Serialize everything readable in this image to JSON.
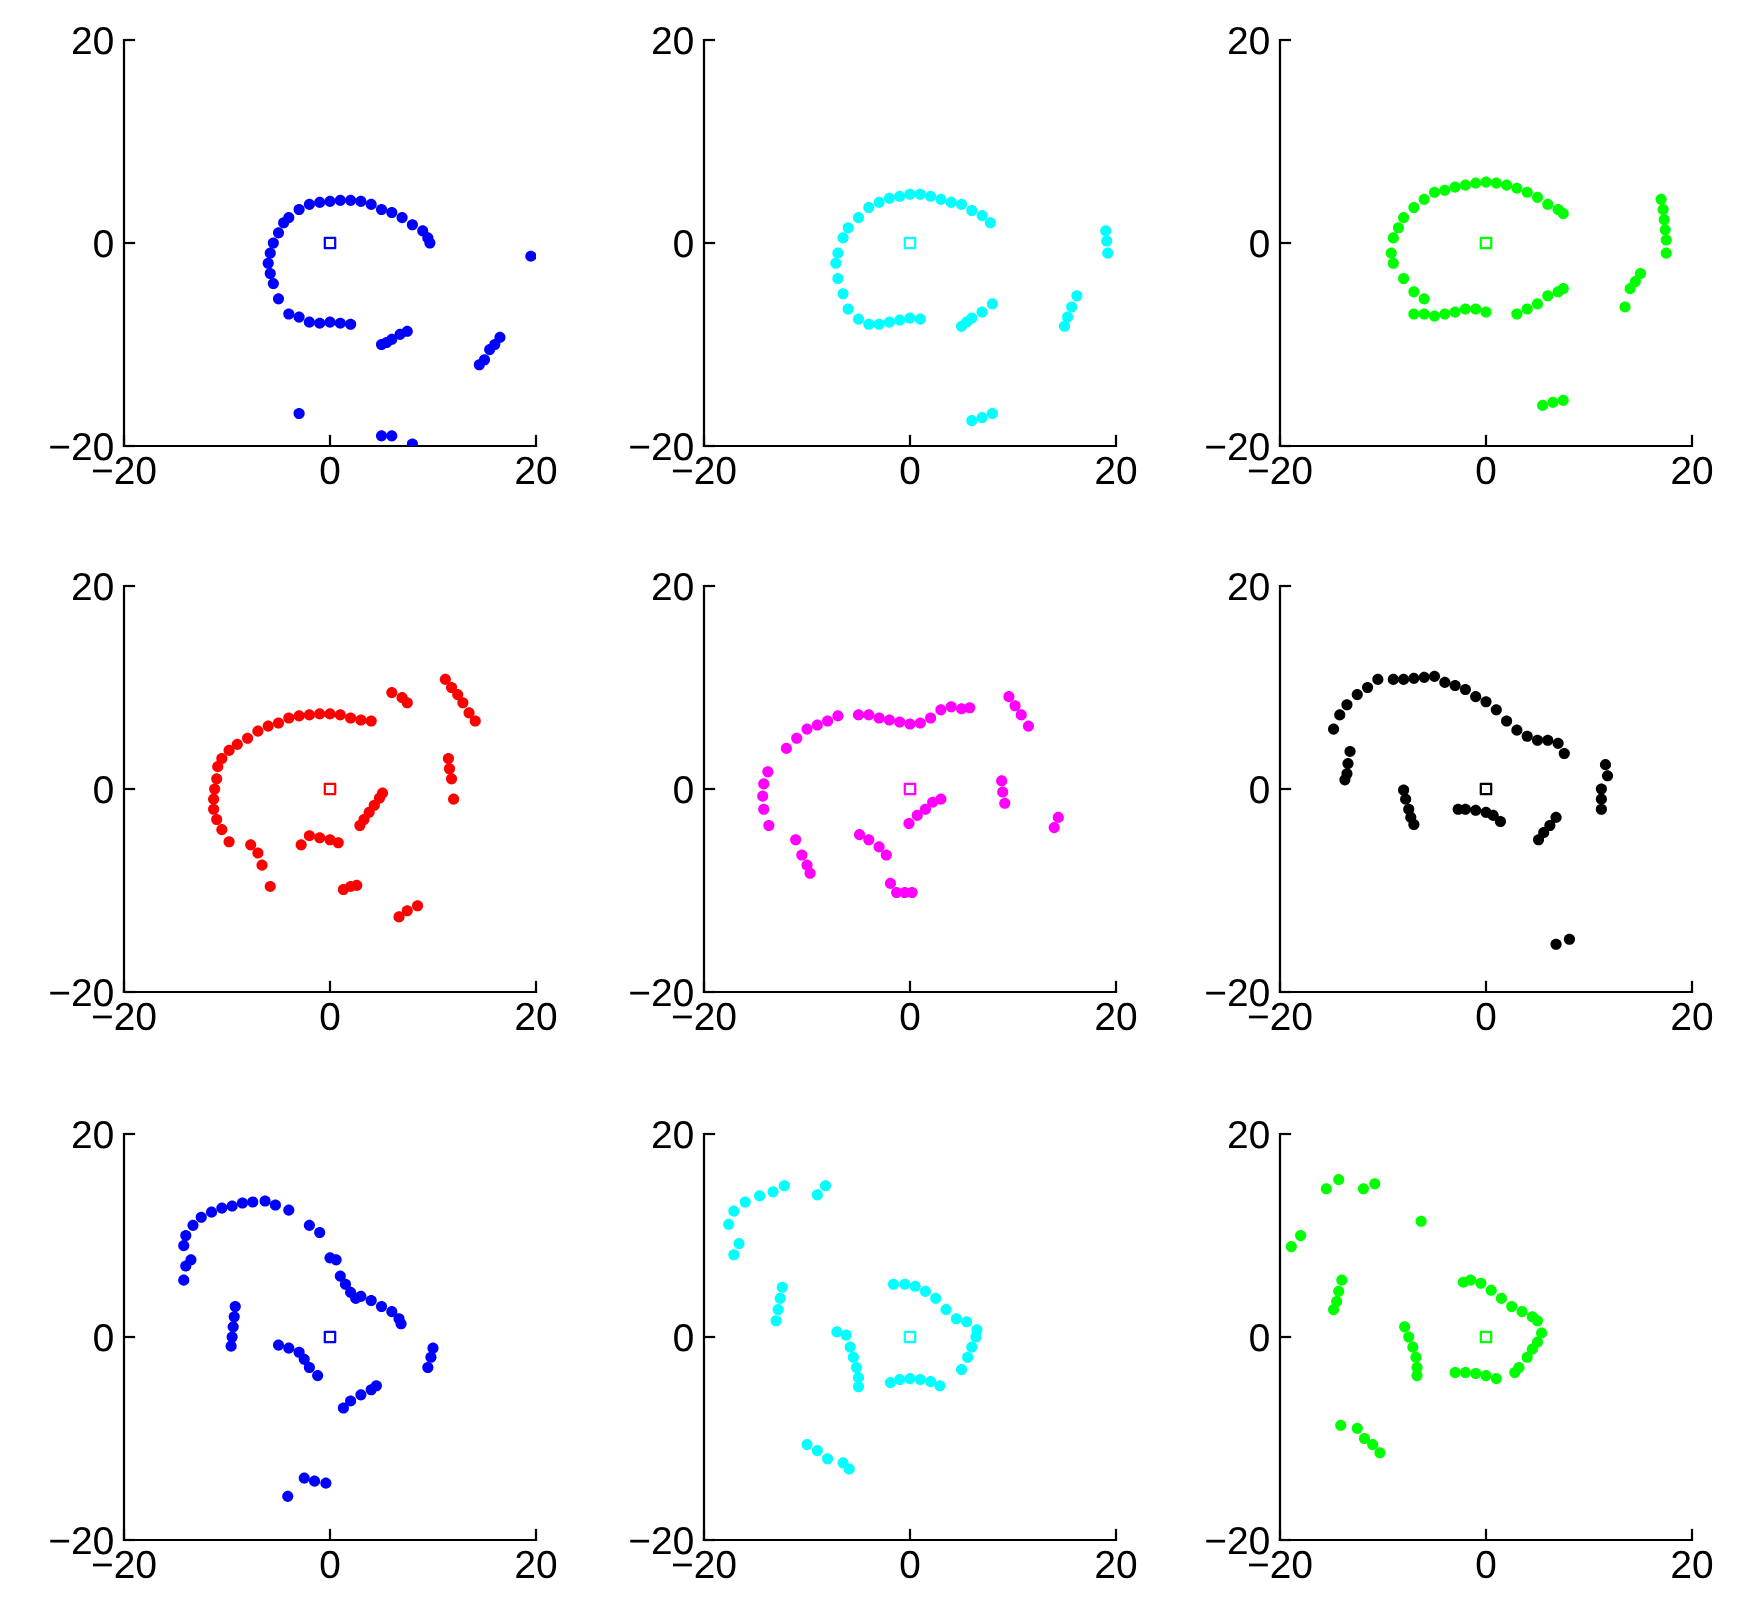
{
  "chart_data": [
    {
      "type": "scatter",
      "xlim": [
        -20,
        20
      ],
      "ylim": [
        -20,
        20
      ],
      "xticks": [
        -20,
        0,
        20
      ],
      "yticks": [
        -20,
        0,
        20
      ],
      "grid": false,
      "marker": "circle",
      "series": [
        {
          "color": "#0000ff",
          "x": [
            -5,
            -5.5,
            -5.8,
            -6,
            -5.8,
            -5.5,
            -5,
            -4.5,
            -4,
            -3,
            -2,
            -1,
            0,
            1,
            2,
            3,
            4,
            5,
            6,
            7,
            8,
            9,
            9.5,
            9.7,
            -4,
            -3,
            -2,
            -1,
            0,
            1,
            2,
            5,
            5.5,
            6,
            6.8,
            7.5,
            14.5,
            15,
            15.5,
            16,
            16.5,
            19.5,
            -3,
            5,
            6,
            8
          ],
          "values": [
            -5.5,
            -4,
            -3,
            -2,
            -1,
            0,
            1,
            2,
            2.5,
            3.3,
            3.8,
            4,
            4.1,
            4.2,
            4.2,
            4.1,
            3.8,
            3.3,
            3,
            2.5,
            1.8,
            1.2,
            0.5,
            0,
            -7,
            -7.3,
            -7.8,
            -7.9,
            -7.8,
            -7.9,
            -8,
            -10,
            -9.8,
            -9.5,
            -9,
            -8.7,
            -12,
            -11.5,
            -10.5,
            -10,
            -9.3,
            -1.3,
            -16.8,
            -19,
            -19,
            -19.8
          ]
        },
        {
          "color": "#0000ff",
          "x": [
            0
          ],
          "values": [
            0
          ],
          "marker": "square"
        }
      ]
    },
    {
      "type": "scatter",
      "xlim": [
        -20,
        20
      ],
      "ylim": [
        -20,
        20
      ],
      "xticks": [
        -20,
        0,
        20
      ],
      "yticks": [
        -20,
        0,
        20
      ],
      "grid": false,
      "marker": "circle",
      "series": [
        {
          "color": "#00ffff",
          "x": [
            -6,
            -6.5,
            -7,
            -7.2,
            -7,
            -6.5,
            -6,
            -5,
            -4,
            -3,
            -2,
            -1,
            0,
            1,
            2,
            3,
            4,
            5,
            6,
            7,
            7.8,
            -5,
            -4,
            -3,
            -2,
            -1,
            0,
            1,
            5,
            5.5,
            6,
            7,
            8,
            15,
            15.3,
            15.7,
            16.2,
            19,
            19.1,
            19.2,
            6,
            7,
            8
          ],
          "values": [
            -6.5,
            -5,
            -3.5,
            -2,
            -1,
            0.5,
            1.5,
            2.5,
            3.5,
            4,
            4.4,
            4.6,
            4.8,
            4.8,
            4.6,
            4.3,
            4,
            3.8,
            3.2,
            2.7,
            2,
            -7.5,
            -8,
            -8,
            -7.8,
            -7.6,
            -7.4,
            -7.5,
            -8.2,
            -7.8,
            -7.4,
            -6.8,
            -6,
            -8.2,
            -7.3,
            -6.3,
            -5.2,
            1.2,
            0.2,
            -1,
            -17.5,
            -17.2,
            -16.8
          ]
        },
        {
          "color": "#00ffff",
          "x": [
            0
          ],
          "values": [
            0
          ],
          "marker": "square"
        }
      ]
    },
    {
      "type": "scatter",
      "xlim": [
        -20,
        20
      ],
      "ylim": [
        -20,
        20
      ],
      "xticks": [
        -20,
        0,
        20
      ],
      "yticks": [
        -20,
        0,
        20
      ],
      "grid": false,
      "marker": "circle",
      "series": [
        {
          "color": "#00ff00",
          "x": [
            -6,
            -7,
            -8,
            -9,
            -9.2,
            -9,
            -8.5,
            -8,
            -7,
            -6,
            -5,
            -4,
            -3,
            -2,
            -1,
            0,
            1,
            2,
            3,
            4,
            5,
            6,
            7,
            7.5,
            -7,
            -6,
            -5,
            -4,
            -3,
            -2,
            -1,
            0,
            3,
            4,
            5,
            6,
            7,
            7.5,
            13.5,
            14,
            14.5,
            15,
            17,
            17.2,
            17.3,
            17.4,
            17.5,
            17.5,
            5.5,
            6.5,
            7.5
          ],
          "values": [
            -5.5,
            -4.8,
            -3.5,
            -2,
            -1,
            0.5,
            1.5,
            2.5,
            3.5,
            4.3,
            5,
            5.2,
            5.5,
            5.7,
            5.9,
            6,
            5.9,
            5.7,
            5.4,
            5,
            4.5,
            3.8,
            3.3,
            2.9,
            -7,
            -7,
            -7.2,
            -7,
            -6.8,
            -6.5,
            -6.5,
            -6.8,
            -7,
            -6.5,
            -6,
            -5.2,
            -4.8,
            -4.5,
            -6.3,
            -4.5,
            -3.8,
            -3,
            4.3,
            3.3,
            2.3,
            1.3,
            0.3,
            -1,
            -16,
            -15.7,
            -15.5
          ]
        },
        {
          "color": "#00ff00",
          "x": [
            0
          ],
          "values": [
            0
          ],
          "marker": "square"
        }
      ]
    },
    {
      "type": "scatter",
      "xlim": [
        -20,
        20
      ],
      "ylim": [
        -20,
        20
      ],
      "xticks": [
        -20,
        0,
        20
      ],
      "yticks": [
        -20,
        0,
        20
      ],
      "grid": false,
      "marker": "circle",
      "series": [
        {
          "color": "#ff0000",
          "x": [
            -9.8,
            -10.5,
            -11,
            -11.3,
            -11.3,
            -11.2,
            -11,
            -10.9,
            -10.5,
            -9.8,
            -9,
            -8,
            -7,
            -6,
            -5,
            -4,
            -3,
            -2,
            -1,
            0,
            1,
            2,
            3,
            4,
            6,
            7,
            7.5,
            11.2,
            11.8,
            12.4,
            12.9,
            13.5,
            14.1,
            11.5,
            11.6,
            11.8,
            12,
            2.9,
            3.3,
            3.8,
            4.3,
            4.8,
            5.1,
            -2.8,
            -2,
            -1,
            0,
            0.8,
            -7.7,
            -7,
            -6.6,
            -5.8,
            1.3,
            2,
            2.6,
            6.7,
            7.5,
            8.5
          ],
          "values": [
            -5.2,
            -4,
            -3,
            -2,
            -1,
            0,
            1,
            2.2,
            3,
            3.8,
            4.4,
            5,
            5.7,
            6.2,
            6.5,
            7,
            7.2,
            7.3,
            7.4,
            7.4,
            7.3,
            7,
            6.8,
            6.7,
            9.5,
            9,
            8.5,
            10.8,
            10,
            9.3,
            8.5,
            7.5,
            6.7,
            3,
            2,
            1,
            -1,
            -3.6,
            -3,
            -2.3,
            -1.6,
            -0.9,
            -0.4,
            -5.5,
            -4.6,
            -4.8,
            -5,
            -5.3,
            -5.5,
            -6.3,
            -7.5,
            -9.6,
            -9.9,
            -9.6,
            -9.5,
            -12.6,
            -12,
            -11.5
          ]
        },
        {
          "color": "#ff0000",
          "x": [
            0
          ],
          "values": [
            0
          ],
          "marker": "square"
        }
      ]
    },
    {
      "type": "scatter",
      "xlim": [
        -20,
        20
      ],
      "ylim": [
        -20,
        20
      ],
      "xticks": [
        -20,
        0,
        20
      ],
      "yticks": [
        -20,
        0,
        20
      ],
      "grid": false,
      "marker": "circle",
      "series": [
        {
          "color": "#ff00ff",
          "x": [
            -13.8,
            -14.2,
            -14.3,
            -14.2,
            -13.7,
            -12,
            -11,
            -10,
            -9,
            -8,
            -7,
            -5,
            -4,
            -3,
            -2,
            -1,
            0,
            1,
            2,
            3,
            4,
            5,
            5.8,
            9.6,
            10.2,
            10.8,
            11.5,
            8.9,
            9,
            9.2,
            14.4,
            14,
            -0.1,
            0.7,
            1.5,
            2.2,
            3,
            -4.9,
            -4,
            -3,
            -2.3,
            -11.1,
            -10.5,
            -10,
            -9.7,
            -1.9,
            -1.3,
            -0.5,
            0.2
          ],
          "values": [
            1.7,
            0.5,
            -0.7,
            -2,
            -3.6,
            4,
            5,
            5.9,
            6.3,
            6.7,
            7.2,
            7.3,
            7.3,
            7,
            6.8,
            6.6,
            6.4,
            6.5,
            7,
            7.8,
            8.1,
            7.9,
            8,
            9.1,
            8.2,
            7.3,
            6.2,
            0.8,
            -0.3,
            -1.4,
            -2.8,
            -3.8,
            -3.4,
            -2.6,
            -2,
            -1.3,
            -1,
            -4.5,
            -5,
            -5.7,
            -6.5,
            -5,
            -6.5,
            -7.5,
            -8.3,
            -9.3,
            -10.2,
            -10.2,
            -10.2
          ]
        },
        {
          "color": "#ff00ff",
          "x": [
            0
          ],
          "values": [
            0
          ],
          "marker": "square"
        }
      ]
    },
    {
      "type": "scatter",
      "xlim": [
        -20,
        20
      ],
      "ylim": [
        -20,
        20
      ],
      "xticks": [
        -20,
        0,
        20
      ],
      "yticks": [
        -20,
        0,
        20
      ],
      "grid": false,
      "marker": "circle",
      "series": [
        {
          "color": "#000000",
          "x": [
            -14.8,
            -14.2,
            -13.5,
            -12.5,
            -11.5,
            -10.5,
            -9,
            -8,
            -7,
            -6,
            -5,
            -4,
            -3,
            -2,
            -1,
            0,
            1,
            2,
            3,
            4,
            5,
            6,
            7,
            7.6,
            -13.2,
            -13.4,
            -13.5,
            -13.7,
            -8,
            -7.8,
            -7.5,
            -7.3,
            -7,
            -2.7,
            -2,
            -1,
            0,
            0.7,
            1.4,
            5.1,
            5.6,
            6.2,
            6.8,
            11.6,
            11.8,
            11.2,
            11.2,
            11.2,
            6.8,
            8.1
          ],
          "values": [
            5.9,
            7.3,
            8.3,
            9.3,
            10,
            10.8,
            10.8,
            10.8,
            10.9,
            11,
            11.1,
            10.5,
            10.2,
            9.8,
            9.1,
            8.6,
            7.8,
            6.7,
            5.8,
            5.2,
            4.8,
            4.8,
            4.5,
            3.5,
            3.7,
            2.5,
            1.5,
            0.9,
            -0.1,
            -1,
            -2,
            -2.8,
            -3.5,
            -2,
            -2,
            -2.1,
            -2.3,
            -2.6,
            -3.2,
            -5,
            -4.3,
            -3.6,
            -2.8,
            2.4,
            1.3,
            0,
            -1,
            -2,
            -15.3,
            -14.8
          ]
        },
        {
          "color": "#000000",
          "x": [
            0
          ],
          "values": [
            0
          ],
          "marker": "square"
        }
      ]
    },
    {
      "type": "scatter",
      "xlim": [
        -20,
        20
      ],
      "ylim": [
        -20,
        20
      ],
      "xticks": [
        -20,
        0,
        20
      ],
      "yticks": [
        -20,
        0,
        20
      ],
      "grid": false,
      "marker": "circle",
      "series": [
        {
          "color": "#0000ff",
          "x": [
            -14.2,
            -14,
            -13.5,
            -14.2,
            -14,
            -13.3,
            -12.5,
            -11.5,
            -10.5,
            -9.5,
            -8.5,
            -7.5,
            -6.3,
            -5.3,
            -4,
            -2,
            -1,
            0,
            0.6,
            1,
            1.5,
            2,
            2.5,
            3,
            4,
            5,
            6,
            6.7,
            6.9,
            -9.2,
            -9.3,
            -9.4,
            -9.5,
            -9.6,
            -5,
            -4,
            -3,
            -2.5,
            -2,
            -1.2,
            1.3,
            2,
            3,
            4,
            4.5,
            10,
            9.8,
            9.5,
            -4.1,
            -2.5,
            -1.5,
            -0.4
          ],
          "values": [
            5.6,
            7,
            7.6,
            9,
            10,
            11,
            11.8,
            12.3,
            12.7,
            12.9,
            13.2,
            13.3,
            13.4,
            13,
            12.5,
            11,
            10.3,
            7.8,
            7.6,
            6,
            5.2,
            4.4,
            3.8,
            4,
            3.6,
            3,
            2.5,
            1.8,
            1.3,
            3,
            2,
            1,
            0,
            -0.9,
            -0.8,
            -1.1,
            -1.5,
            -2.2,
            -3,
            -3.8,
            -7,
            -6.3,
            -5.7,
            -5.2,
            -4.8,
            -1.1,
            -2,
            -3,
            -15.7,
            -13.9,
            -14.2,
            -14.4
          ]
        },
        {
          "color": "#0000ff",
          "x": [
            0
          ],
          "values": [
            0
          ],
          "marker": "square"
        }
      ]
    },
    {
      "type": "scatter",
      "xlim": [
        -20,
        20
      ],
      "ylim": [
        -20,
        20
      ],
      "xticks": [
        -20,
        0,
        20
      ],
      "yticks": [
        -20,
        0,
        20
      ],
      "grid": false,
      "marker": "circle",
      "series": [
        {
          "color": "#00ffff",
          "x": [
            -17.6,
            -17.1,
            -16,
            -14.6,
            -13.3,
            -12.2,
            -17.1,
            -16.6,
            -9,
            -8.2,
            -12.4,
            -12.6,
            -12.8,
            -13,
            -7.1,
            -6.2,
            -5.8,
            -5.5,
            -5.2,
            -5,
            -5,
            -1.6,
            -0.5,
            0.5,
            1.5,
            2.5,
            3.5,
            4.5,
            5.5,
            6.5,
            6.4,
            6,
            5.6,
            5,
            -1.9,
            -1,
            0,
            1,
            2,
            2.9,
            -10,
            -9,
            -8,
            -6.5,
            -5.9
          ],
          "values": [
            11.1,
            12.4,
            13.3,
            13.9,
            14.3,
            14.9,
            8.1,
            9.2,
            14,
            14.9,
            4.9,
            3.8,
            2.7,
            1.6,
            0.5,
            0.2,
            -1,
            -2,
            -3,
            -4,
            -4.9,
            5.2,
            5.2,
            5,
            4.5,
            3.8,
            2.7,
            1.8,
            1.5,
            0.7,
            0,
            -1,
            -2,
            -3.2,
            -4.5,
            -4.2,
            -4.1,
            -4.2,
            -4.4,
            -4.8,
            -10.6,
            -11.2,
            -12,
            -12.4,
            -13
          ]
        },
        {
          "color": "#00ffff",
          "x": [
            0
          ],
          "values": [
            0
          ],
          "marker": "square"
        }
      ]
    },
    {
      "type": "scatter",
      "xlim": [
        -20,
        20
      ],
      "ylim": [
        -20,
        20
      ],
      "xticks": [
        -20,
        0,
        20
      ],
      "yticks": [
        -20,
        0,
        20
      ],
      "grid": false,
      "marker": "circle",
      "series": [
        {
          "color": "#00ff00",
          "x": [
            -18.9,
            -18,
            -14.3,
            -15.5,
            -11.9,
            -10.8,
            -6.3,
            -14,
            -14.3,
            -14.5,
            -14.8,
            -7.9,
            -7.5,
            -7.1,
            -6.8,
            -6.7,
            -6.7,
            -2.2,
            -1.5,
            -0.5,
            0.5,
            1.5,
            2.5,
            3.5,
            4.5,
            5,
            5.4,
            5,
            4.5,
            4,
            3.2,
            2.8,
            -3,
            -2,
            -1,
            0,
            1,
            -14.1,
            -12.5,
            -11.8,
            -11,
            -10.3
          ],
          "values": [
            8.9,
            10,
            15.5,
            14.6,
            14.6,
            15.1,
            11.4,
            5.6,
            4.5,
            3.5,
            2.7,
            1,
            0,
            -1,
            -2,
            -3,
            -3.8,
            5.4,
            5.6,
            5.3,
            4.6,
            3.8,
            3,
            2.5,
            2,
            1.6,
            0.4,
            -0.5,
            -1.2,
            -2,
            -3,
            -3.5,
            -3.5,
            -3.5,
            -3.6,
            -3.8,
            -4.1,
            -8.7,
            -9,
            -10,
            -10.6,
            -11.4
          ]
        },
        {
          "color": "#00ff00",
          "x": [
            0
          ],
          "values": [
            0
          ],
          "marker": "square"
        }
      ]
    }
  ]
}
